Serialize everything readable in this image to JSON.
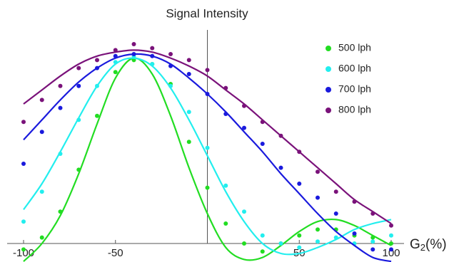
{
  "chart_data": {
    "type": "scatter",
    "title": "Signal Intensity",
    "x_label": {
      "base": "G",
      "sub": "2",
      "unit": "(%)"
    },
    "xlim": [
      -100,
      100
    ],
    "ylim": [
      -0.09,
      1.05
    ],
    "xticks": [
      -100,
      -50,
      50,
      100
    ],
    "legend": "top-right",
    "x": [
      -100,
      -90,
      -80,
      -70,
      -60,
      -50,
      -40,
      -30,
      -20,
      -10,
      0,
      10,
      20,
      30,
      40,
      50,
      60,
      70,
      80,
      90,
      100
    ],
    "series": [
      {
        "name": "500 lph",
        "color": "#22dd22",
        "values": [
          -0.03,
          0.03,
          0.16,
          0.37,
          0.64,
          0.86,
          0.92,
          0.9,
          0.8,
          0.51,
          0.28,
          0.1,
          0,
          -0.04,
          0,
          0.04,
          0.07,
          0.07,
          0.04,
          0.03,
          0
        ],
        "fit": [
          -0.09,
          0,
          0.14,
          0.35,
          0.6,
          0.83,
          0.93,
          0.85,
          0.64,
          0.38,
          0.15,
          -0.02,
          -0.08,
          -0.07,
          -0.01,
          0.06,
          0.11,
          0.12,
          0.09,
          0.04,
          -0.01
        ]
      },
      {
        "name": "600 lph",
        "color": "#22eeee",
        "values": [
          0.11,
          0.26,
          0.45,
          0.62,
          0.79,
          0.91,
          0.94,
          0.9,
          0.79,
          0.66,
          0.48,
          0.29,
          0.16,
          0.04,
          0,
          -0.02,
          0.01,
          0.03,
          0,
          0.01,
          0.04
        ],
        "fit": [
          0.17,
          0.3,
          0.46,
          0.63,
          0.79,
          0.9,
          0.93,
          0.89,
          0.78,
          0.62,
          0.44,
          0.26,
          0.11,
          0,
          -0.05,
          -0.05,
          -0.02,
          0.02,
          0.07,
          0.1,
          0.12
        ]
      },
      {
        "name": "700 lph",
        "color": "#1a1add",
        "values": [
          0.4,
          0.56,
          0.68,
          0.79,
          0.88,
          0.94,
          0.95,
          0.94,
          0.89,
          0.85,
          0.75,
          0.65,
          0.58,
          0.5,
          0.38,
          0.3,
          0.23,
          0.15,
          0.05,
          -0.03,
          -0.03
        ],
        "fit": [
          0.52,
          0.62,
          0.72,
          0.81,
          0.88,
          0.93,
          0.95,
          0.94,
          0.9,
          0.83,
          0.75,
          0.66,
          0.56,
          0.46,
          0.35,
          0.25,
          0.15,
          0.06,
          -0.01,
          -0.07,
          -0.09
        ]
      },
      {
        "name": "800 lph",
        "color": "#7a127a",
        "values": [
          0.61,
          0.72,
          0.79,
          0.88,
          0.92,
          0.97,
          1.0,
          0.98,
          0.95,
          0.92,
          0.87,
          0.78,
          0.69,
          0.61,
          0.54,
          0.46,
          0.36,
          0.26,
          0.21,
          0.15,
          0.09
        ],
        "fit": [
          0.7,
          0.77,
          0.84,
          0.9,
          0.94,
          0.96,
          0.97,
          0.96,
          0.93,
          0.89,
          0.84,
          0.77,
          0.7,
          0.62,
          0.54,
          0.46,
          0.38,
          0.3,
          0.22,
          0.16,
          0.1
        ]
      }
    ]
  }
}
